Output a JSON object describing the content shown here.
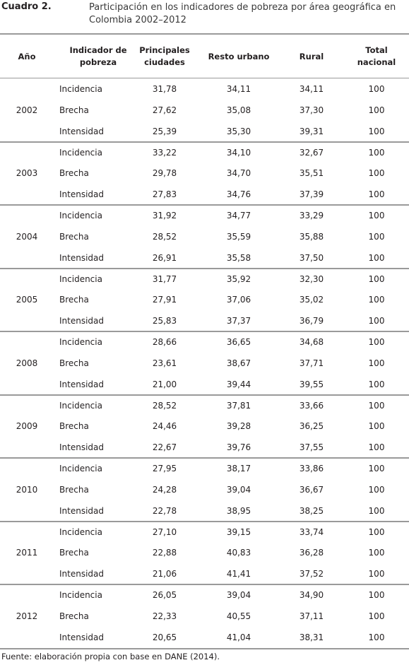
{
  "caption": {
    "label": "Cuadro 2.",
    "title": "Participación en los indicadores de pobreza por área geográfica en Colombia 2002–2012"
  },
  "table": {
    "headers": [
      "Año",
      "Indicador de pobreza",
      "Principales ciudades",
      "Resto urbano",
      "Rural",
      "Total nacional"
    ],
    "groups": [
      {
        "year": "2002",
        "rows": [
          {
            "indicator": "Incidencia",
            "principales": "31,78",
            "resto": "34,11",
            "rural": "34,11",
            "total": "100"
          },
          {
            "indicator": "Brecha",
            "principales": "27,62",
            "resto": "35,08",
            "rural": "37,30",
            "total": "100"
          },
          {
            "indicator": "Intensidad",
            "principales": "25,39",
            "resto": "35,30",
            "rural": "39,31",
            "total": "100"
          }
        ]
      },
      {
        "year": "2003",
        "rows": [
          {
            "indicator": "Incidencia",
            "principales": "33,22",
            "resto": "34,10",
            "rural": "32,67",
            "total": "100"
          },
          {
            "indicator": "Brecha",
            "principales": "29,78",
            "resto": "34,70",
            "rural": "35,51",
            "total": "100"
          },
          {
            "indicator": "Intensidad",
            "principales": "27,83",
            "resto": "34,76",
            "rural": "37,39",
            "total": "100"
          }
        ]
      },
      {
        "year": "2004",
        "rows": [
          {
            "indicator": "Incidencia",
            "principales": "31,92",
            "resto": "34,77",
            "rural": "33,29",
            "total": "100"
          },
          {
            "indicator": "Brecha",
            "principales": "28,52",
            "resto": "35,59",
            "rural": "35,88",
            "total": "100"
          },
          {
            "indicator": "Intensidad",
            "principales": "26,91",
            "resto": "35,58",
            "rural": "37,50",
            "total": "100"
          }
        ]
      },
      {
        "year": "2005",
        "rows": [
          {
            "indicator": "Incidencia",
            "principales": "31,77",
            "resto": "35,92",
            "rural": "32,30",
            "total": "100"
          },
          {
            "indicator": "Brecha",
            "principales": "27,91",
            "resto": "37,06",
            "rural": "35,02",
            "total": "100"
          },
          {
            "indicator": "Intensidad",
            "principales": "25,83",
            "resto": "37,37",
            "rural": "36,79",
            "total": "100"
          }
        ]
      },
      {
        "year": "2008",
        "rows": [
          {
            "indicator": "Incidencia",
            "principales": "28,66",
            "resto": "36,65",
            "rural": "34,68",
            "total": "100"
          },
          {
            "indicator": "Brecha",
            "principales": "23,61",
            "resto": "38,67",
            "rural": "37,71",
            "total": "100"
          },
          {
            "indicator": "Intensidad",
            "principales": "21,00",
            "resto": "39,44",
            "rural": "39,55",
            "total": "100"
          }
        ]
      },
      {
        "year": "2009",
        "rows": [
          {
            "indicator": "Incidencia",
            "principales": "28,52",
            "resto": "37,81",
            "rural": "33,66",
            "total": "100"
          },
          {
            "indicator": "Brecha",
            "principales": "24,46",
            "resto": "39,28",
            "rural": "36,25",
            "total": "100"
          },
          {
            "indicator": "Intensidad",
            "principales": "22,67",
            "resto": "39,76",
            "rural": "37,55",
            "total": "100"
          }
        ]
      },
      {
        "year": "2010",
        "rows": [
          {
            "indicator": "Incidencia",
            "principales": "27,95",
            "resto": "38,17",
            "rural": "33,86",
            "total": "100"
          },
          {
            "indicator": "Brecha",
            "principales": "24,28",
            "resto": "39,04",
            "rural": "36,67",
            "total": "100"
          },
          {
            "indicator": "Intensidad",
            "principales": "22,78",
            "resto": "38,95",
            "rural": "38,25",
            "total": "100"
          }
        ]
      },
      {
        "year": "2011",
        "rows": [
          {
            "indicator": "Incidencia",
            "principales": "27,10",
            "resto": "39,15",
            "rural": "33,74",
            "total": "100"
          },
          {
            "indicator": "Brecha",
            "principales": "22,88",
            "resto": "40,83",
            "rural": "36,28",
            "total": "100"
          },
          {
            "indicator": "Intensidad",
            "principales": "21,06",
            "resto": "41,41",
            "rural": "37,52",
            "total": "100"
          }
        ]
      },
      {
        "year": "2012",
        "rows": [
          {
            "indicator": "Incidencia",
            "principales": "26,05",
            "resto": "39,04",
            "rural": "34,90",
            "total": "100"
          },
          {
            "indicator": "Brecha",
            "principales": "22,33",
            "resto": "40,55",
            "rural": "37,11",
            "total": "100"
          },
          {
            "indicator": "Intensidad",
            "principales": "20,65",
            "resto": "41,04",
            "rural": "38,31",
            "total": "100"
          }
        ]
      }
    ]
  },
  "source": "Fuente: elaboración propia con base en DANE (2014)."
}
